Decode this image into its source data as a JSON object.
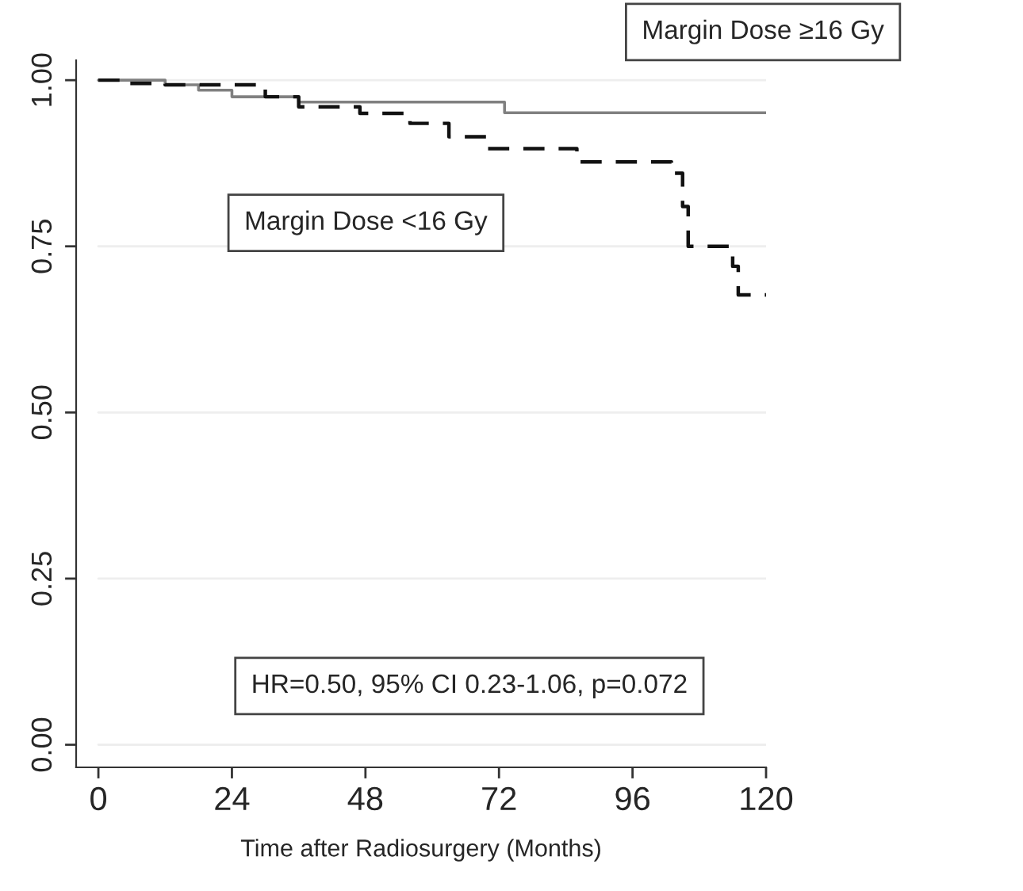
{
  "chart_data": {
    "type": "step",
    "xlabel": "Time after Radiosurgery (Months)",
    "xlim": [
      -4,
      120
    ],
    "xticks": [
      0,
      24,
      48,
      72,
      96,
      120
    ],
    "ylim": [
      -0.034,
      1.03
    ],
    "yticks": [
      {
        "value": 1,
        "label": "1.00"
      },
      {
        "value": 0.75,
        "label": "0.75"
      },
      {
        "value": 0.5,
        "label": "0.50"
      },
      {
        "value": 0.25,
        "label": "0.25"
      },
      {
        "value": 0,
        "label": "0.00"
      }
    ],
    "grid": "y",
    "series": [
      {
        "name": "Margin Dose ≥16 Gy",
        "color": "#808080",
        "line_style": "solid",
        "x": [
          0,
          12,
          18,
          24,
          36,
          73,
          120
        ],
        "values": [
          1.0,
          0.993,
          0.985,
          0.975,
          0.967,
          0.951,
          0.951
        ]
      },
      {
        "name": "Margin Dose <16 Gy",
        "color": "#111111",
        "line_style": "dashed",
        "x": [
          0,
          5,
          12,
          30,
          36,
          47,
          56,
          63,
          70,
          86,
          103,
          105,
          106,
          114,
          115,
          120
        ],
        "values": [
          1.0,
          0.995,
          0.993,
          0.975,
          0.96,
          0.95,
          0.935,
          0.915,
          0.897,
          0.877,
          0.86,
          0.81,
          0.75,
          0.72,
          0.677,
          0.677
        ]
      }
    ],
    "annotations": [
      "HR=0.50, 95% CI 0.23-1.06, p=0.072"
    ]
  }
}
